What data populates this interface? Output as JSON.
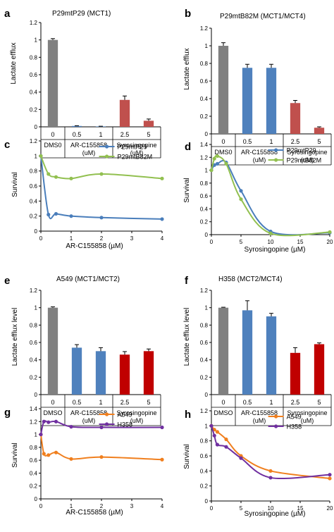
{
  "panel_letters": [
    "a",
    "b",
    "c",
    "d",
    "e",
    "f",
    "g",
    "h"
  ],
  "group_labels": {
    "dms0": "DMS0",
    "dmso": "DMSO",
    "ar": "AR-C155858",
    "ar_um": "(uM)",
    "syro": "Syrosingopine",
    "syro_um": "(uM)"
  },
  "colors": {
    "gray": "#808080",
    "blue": "#4f81bd",
    "salmon": "#c0504d",
    "red": "#c00000",
    "line_blue": "#4a7ebb",
    "line_green": "#92c050",
    "orange": "#f07f1e",
    "purple": "#7030a0"
  },
  "chart_data": [
    {
      "id": "a",
      "type": "bar",
      "title": "P29mtP29 (MCT1)",
      "ylabel": "Lactate efflux",
      "ylim": [
        0,
        1.2
      ],
      "yticks": [
        0,
        0.2,
        0.4,
        0.6,
        0.8,
        1,
        1.2
      ],
      "categories": [
        "0",
        "0.5",
        "1",
        "2.5",
        "5"
      ],
      "values": [
        1.0,
        0.01,
        0.005,
        0.31,
        0.07
      ],
      "errors": [
        0.015,
        0.003,
        0.002,
        0.045,
        0.02
      ],
      "groups": [
        "dms0",
        "ar",
        "syro"
      ]
    },
    {
      "id": "b",
      "type": "bar",
      "title": "P29mtB82M (MCT1/MCT4)",
      "ylabel": "Lactate efflux",
      "ylim": [
        0,
        1.2
      ],
      "yticks": [
        0,
        0.2,
        0.4,
        0.6,
        0.8,
        1,
        1.2
      ],
      "categories": [
        "0",
        "0.5",
        "1",
        "2.5",
        "5"
      ],
      "values": [
        1.0,
        0.75,
        0.75,
        0.35,
        0.07
      ],
      "errors": [
        0.035,
        0.04,
        0.04,
        0.03,
        0.01
      ],
      "groups": [
        "dms0",
        "ar",
        "syro"
      ]
    },
    {
      "id": "c",
      "type": "line",
      "xlabel": "AR-C155858 (µM)",
      "ylabel": "Survival",
      "xlim": [
        0,
        4
      ],
      "xticks": [
        0,
        1,
        2,
        3,
        4
      ],
      "ylim": [
        0,
        1.2
      ],
      "yticks": [
        0,
        0.2,
        0.4,
        0.6,
        0.8,
        1,
        1.2
      ],
      "legend": "top-right",
      "series": [
        {
          "name": "P29mtP29",
          "x": [
            0,
            0.25,
            0.5,
            1,
            2,
            4
          ],
          "y": [
            1.0,
            0.22,
            0.23,
            0.2,
            0.18,
            0.16
          ]
        },
        {
          "name": "P29mtB82M",
          "x": [
            0,
            0.25,
            0.5,
            1,
            2,
            4
          ],
          "y": [
            1.0,
            0.76,
            0.72,
            0.7,
            0.76,
            0.7
          ]
        }
      ]
    },
    {
      "id": "d",
      "type": "line",
      "xlabel": "Syrosingopine (µM)",
      "ylabel": "Survival",
      "xlim": [
        0,
        20
      ],
      "xticks": [
        0,
        5,
        10,
        15,
        20
      ],
      "ylim": [
        0,
        1.4
      ],
      "yticks": [
        0,
        0.2,
        0.4,
        0.6,
        0.8,
        1,
        1.2,
        1.4
      ],
      "legend": "top-right",
      "series": [
        {
          "name": "P29mtP29",
          "x": [
            0,
            0.5,
            1,
            2.5,
            5,
            10,
            20
          ],
          "y": [
            1.0,
            1.08,
            1.1,
            1.12,
            0.68,
            0.05,
            0.03
          ]
        },
        {
          "name": "P29mtB82M",
          "x": [
            0,
            0.5,
            1,
            2.5,
            5,
            10,
            20
          ],
          "y": [
            1.0,
            1.18,
            1.22,
            1.1,
            0.55,
            0.02,
            0.04
          ]
        }
      ]
    },
    {
      "id": "e",
      "type": "bar",
      "title": "A549 (MCT1/MCT2)",
      "ylabel": "Lactate efflux level",
      "ylim": [
        0,
        1.2
      ],
      "yticks": [
        0,
        0.2,
        0.4,
        0.6,
        0.8,
        1,
        1.2
      ],
      "categories": [
        "0",
        "0.5",
        "1",
        "2.5",
        "5"
      ],
      "values": [
        1.0,
        0.54,
        0.5,
        0.46,
        0.5
      ],
      "errors": [
        0.01,
        0.035,
        0.04,
        0.035,
        0.025
      ],
      "groups": [
        "dmso",
        "ar",
        "syro"
      ]
    },
    {
      "id": "f",
      "type": "bar",
      "title": "H358 (MCT2/MCT4)",
      "ylabel": "Lactate efflux level",
      "ylim": [
        0,
        1.2
      ],
      "yticks": [
        0,
        0.2,
        0.4,
        0.6,
        0.8,
        1,
        1.2
      ],
      "categories": [
        "0",
        "0.5",
        "1",
        "2.5",
        "5"
      ],
      "values": [
        1.0,
        0.97,
        0.9,
        0.48,
        0.58
      ],
      "errors": [
        0.005,
        0.11,
        0.035,
        0.06,
        0.015
      ],
      "groups": [
        "dmso",
        "ar",
        "syro"
      ]
    },
    {
      "id": "g",
      "type": "line",
      "xlabel": "AR-C155858 (µM)",
      "ylabel": "Survival",
      "xlim": [
        0,
        4
      ],
      "xticks": [
        0,
        1,
        2,
        3,
        4
      ],
      "ylim": [
        0,
        1.4
      ],
      "yticks": [
        0,
        0.2,
        0.4,
        0.6,
        0.8,
        1,
        1.2,
        1.4
      ],
      "legend": "top-right",
      "series": [
        {
          "name": "A549",
          "x": [
            0,
            0.1,
            0.25,
            0.5,
            1,
            2,
            4
          ],
          "y": [
            1.0,
            0.7,
            0.68,
            0.72,
            0.62,
            0.65,
            0.61
          ]
        },
        {
          "name": "H358",
          "x": [
            0,
            0.1,
            0.25,
            0.5,
            1,
            2,
            4
          ],
          "y": [
            1.0,
            1.2,
            1.19,
            1.2,
            1.12,
            1.11,
            1.11
          ]
        }
      ]
    },
    {
      "id": "h",
      "type": "line",
      "xlabel": "Syrosingopine (µM)",
      "ylabel": "Survival",
      "xlim": [
        0,
        20
      ],
      "xticks": [
        0,
        5,
        10,
        15,
        20
      ],
      "ylim": [
        0,
        1.2
      ],
      "yticks": [
        0,
        0.2,
        0.4,
        0.6,
        0.8,
        1,
        1.2
      ],
      "legend": "top-right",
      "series": [
        {
          "name": "A549",
          "x": [
            0,
            0.5,
            1,
            2.5,
            5,
            10,
            20
          ],
          "y": [
            1.0,
            0.95,
            0.92,
            0.82,
            0.6,
            0.4,
            0.3
          ]
        },
        {
          "name": "H358",
          "x": [
            0,
            0.5,
            1,
            2.5,
            5,
            10,
            20
          ],
          "y": [
            1.0,
            0.87,
            0.75,
            0.72,
            0.57,
            0.31,
            0.35
          ]
        }
      ]
    }
  ]
}
